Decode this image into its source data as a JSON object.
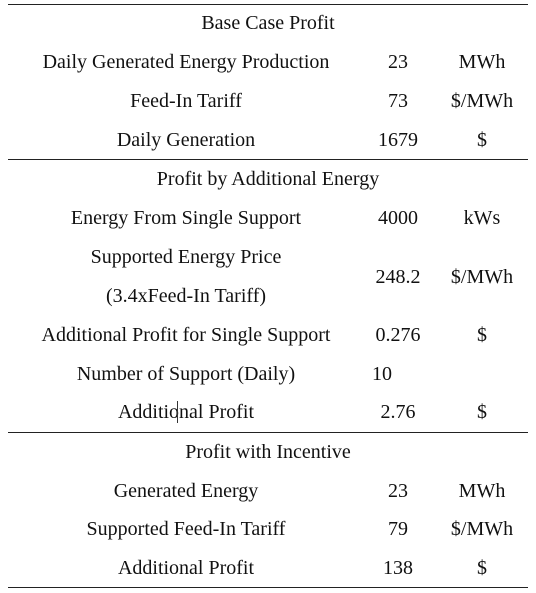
{
  "section1": {
    "title": "Base Case Profit",
    "rows": [
      {
        "label": "Daily Generated Energy Production",
        "value": "23",
        "unit": "MWh"
      },
      {
        "label": "Feed-In Tariff",
        "value": "73",
        "unit": "$/MWh"
      },
      {
        "label": "Daily Generation",
        "value": "1679",
        "unit": "$"
      }
    ]
  },
  "section2": {
    "title": "Profit by Additional Energy",
    "rows": [
      {
        "label": "Energy From Single Support",
        "value": "4000",
        "unit": "kWs"
      },
      {
        "label_line1": "Supported Energy Price",
        "label_line2": "(3.4xFeed-In Tariff)",
        "value": "248.2",
        "unit": "$/MWh"
      },
      {
        "label": "Additional Profit for Single Support",
        "value": "0.276",
        "unit": "$"
      },
      {
        "label": "Number of Support (Daily)",
        "value": "10",
        "unit": ""
      },
      {
        "label": "Additional Profit",
        "value": "2.76",
        "unit": "$"
      }
    ]
  },
  "section3": {
    "title": "Profit with Incentive",
    "rows": [
      {
        "label": "Generated Energy",
        "value": "23",
        "unit": "MWh"
      },
      {
        "label": "Supported Feed-In Tariff",
        "value": "79",
        "unit": "$/MWh"
      },
      {
        "label": "Additional Profit",
        "value": "138",
        "unit": "$"
      }
    ]
  }
}
